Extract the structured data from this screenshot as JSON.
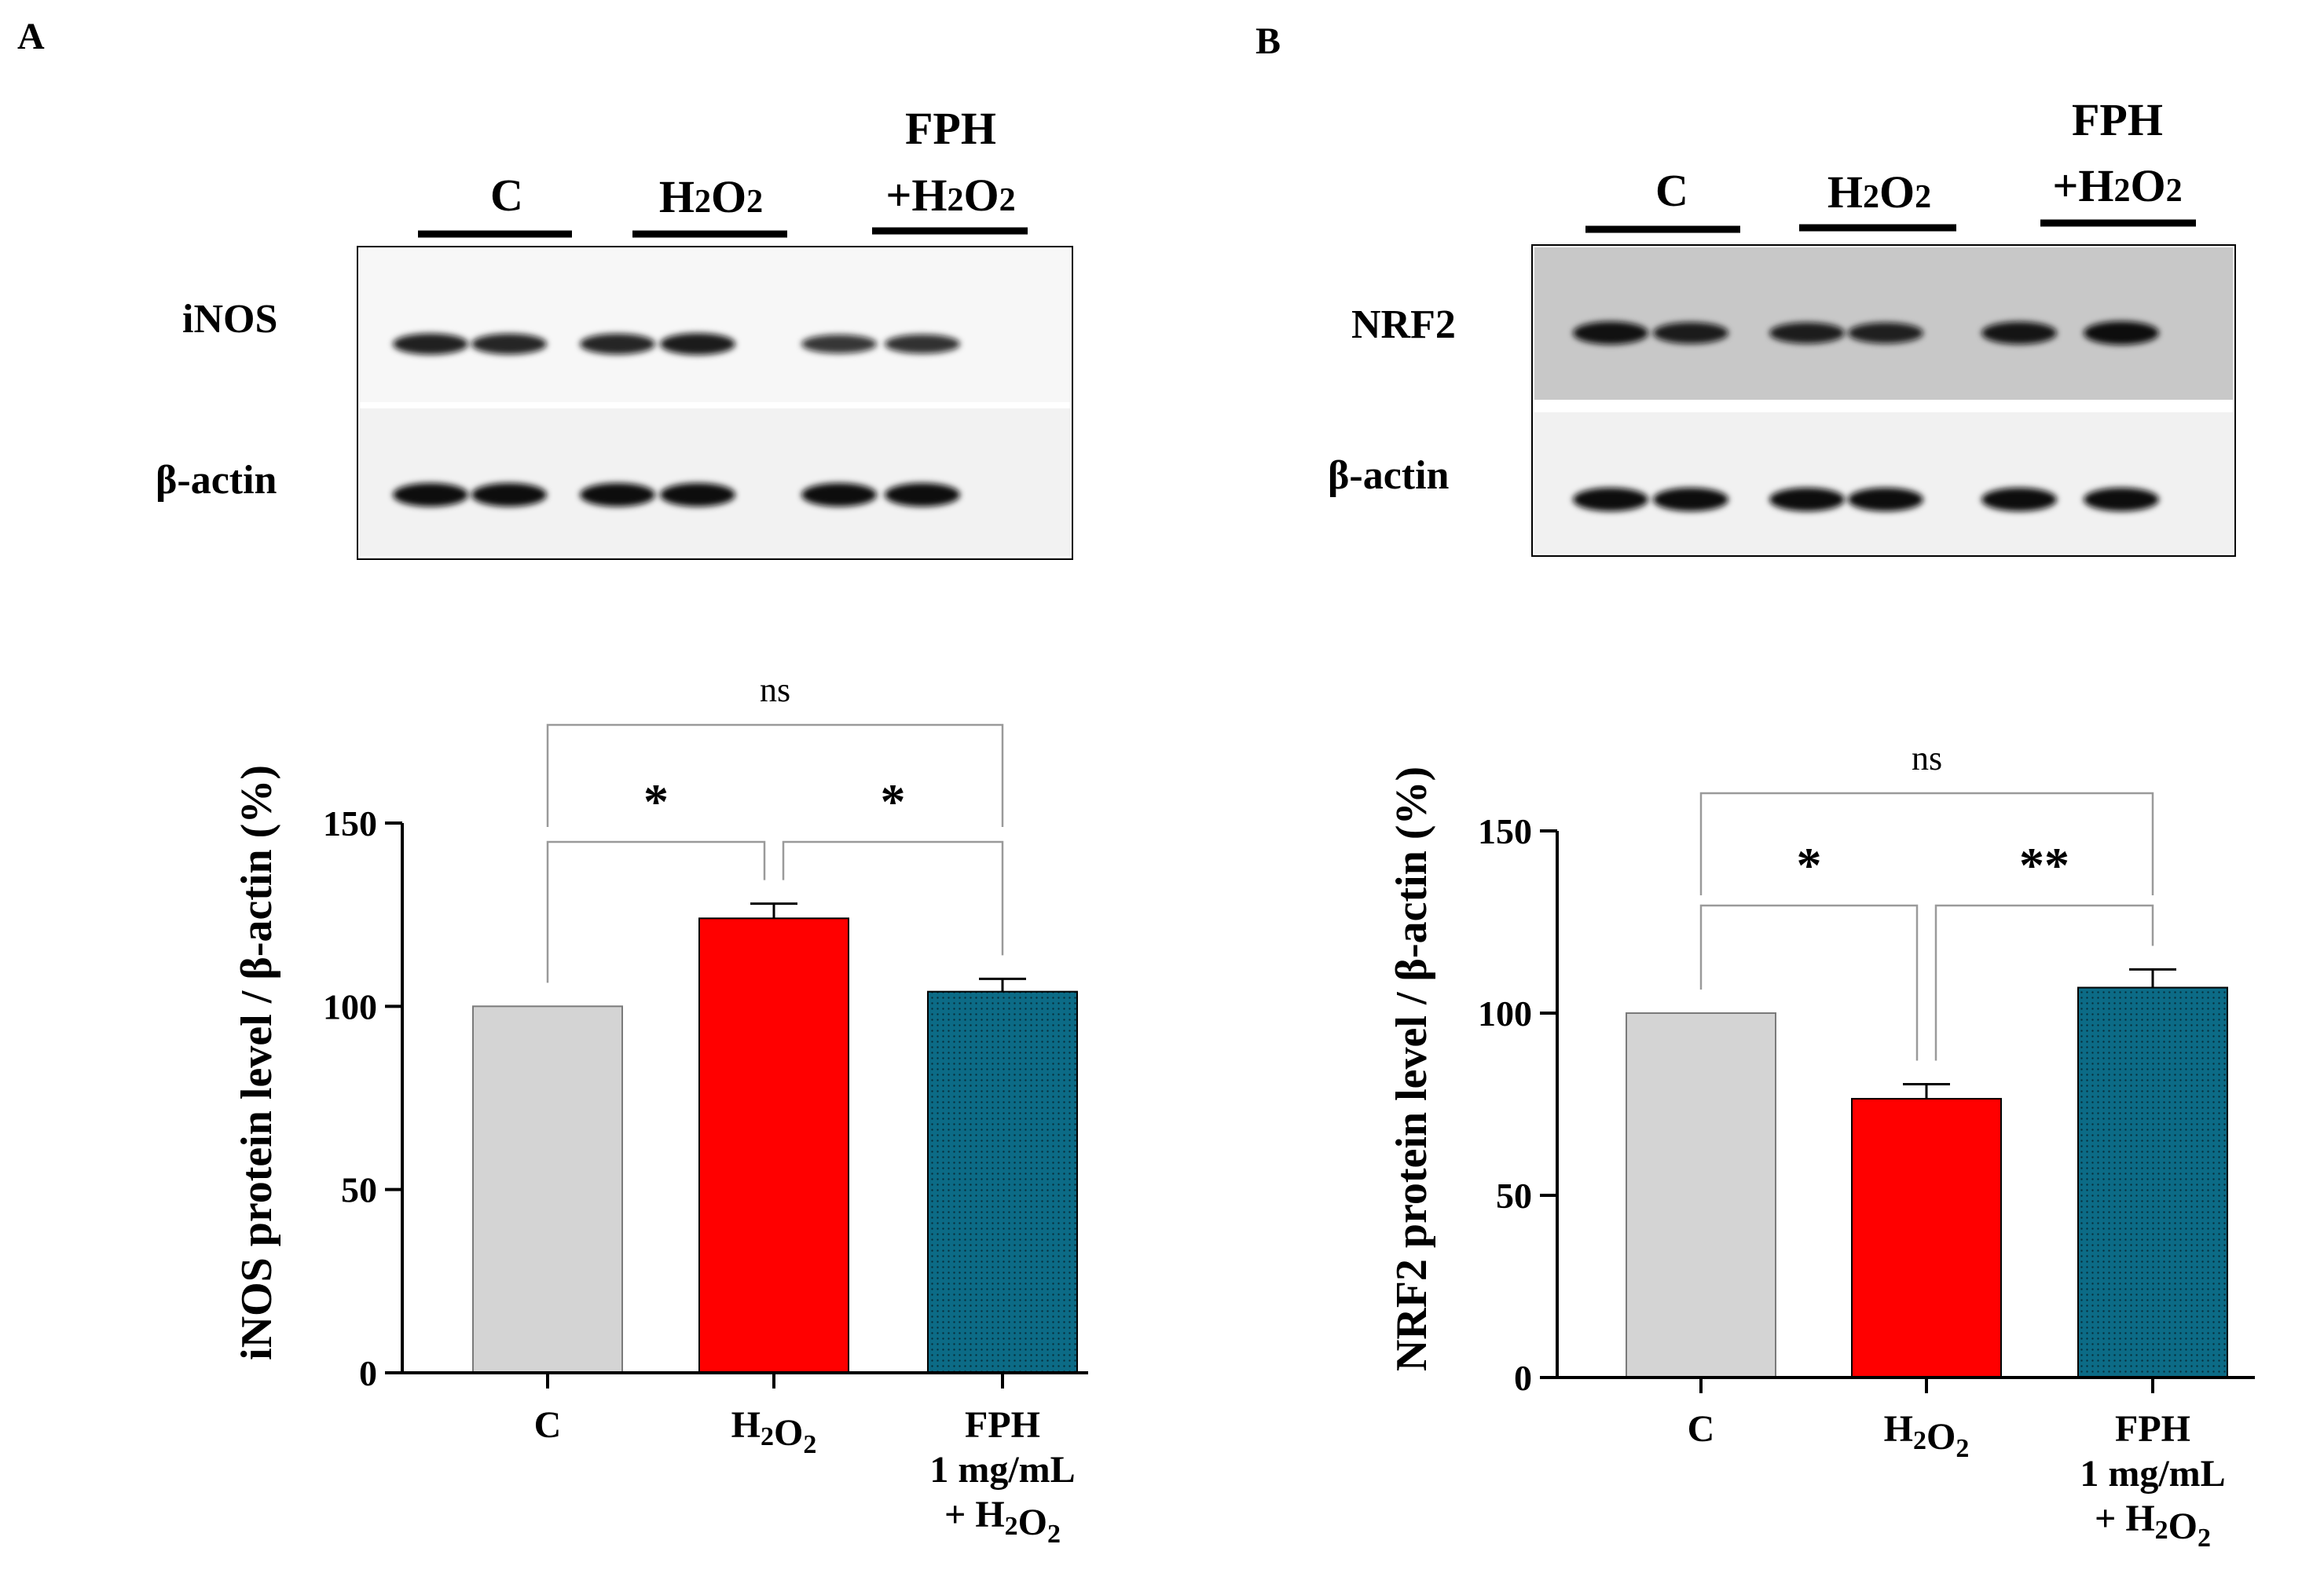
{
  "colors": {
    "control": "#d4d4d4",
    "h2o2": "#ff0000",
    "fph": "#0c6b86",
    "fph_dots": "#07303d",
    "bracket": "#9a9a9a",
    "band": "#0e0e0e"
  },
  "panels": {
    "a": {
      "letter": "A",
      "blot": {
        "lane_groups": [
          {
            "label": "C"
          },
          {
            "label": "H",
            "sub": "2",
            "mid": "O",
            "sub2": "2"
          },
          {
            "label_top": "FPH",
            "label": "+H",
            "sub": "2",
            "mid": "O",
            "sub2": "2"
          }
        ],
        "rows": [
          {
            "label": "iNOS",
            "intensity": [
              0.82,
              0.78,
              0.78,
              0.86,
              0.62,
              0.66
            ]
          },
          {
            "label": "β-actin",
            "intensity": [
              1.0,
              1.0,
              1.0,
              1.0,
              1.0,
              1.0
            ]
          }
        ]
      }
    },
    "b": {
      "letter": "B",
      "blot": {
        "lane_groups": [
          {
            "label": "C"
          },
          {
            "label": "H",
            "sub": "2",
            "mid": "O",
            "sub2": "2"
          },
          {
            "label_top": "FPH",
            "label": "+H",
            "sub": "2",
            "mid": "O",
            "sub2": "2"
          }
        ],
        "rows": [
          {
            "label": "NRF2",
            "intensity": [
              0.95,
              0.85,
              0.82,
              0.8,
              0.92,
              1.0
            ]
          },
          {
            "label": "β-actin",
            "intensity": [
              1.0,
              1.0,
              1.0,
              1.0,
              1.0,
              1.0
            ]
          }
        ]
      }
    }
  },
  "chart_data": [
    {
      "type": "bar",
      "panel": "A",
      "ylabel": "iNOS protein level / β-actin (%)",
      "ylim": [
        0,
        150
      ],
      "yticks": [
        0,
        50,
        100,
        150
      ],
      "categories": [
        {
          "lines": [
            {
              "text": "C"
            }
          ]
        },
        {
          "lines": [
            {
              "text": "H",
              "sub": "2",
              "text2": "O",
              "sub2": "2"
            }
          ]
        },
        {
          "lines": [
            {
              "text": "FPH"
            },
            {
              "text": "1 mg/mL"
            },
            {
              "text": "+ H",
              "sub": "2",
              "text2": "O",
              "sub2": "2"
            }
          ]
        }
      ],
      "values": [
        100,
        124,
        104
      ],
      "errors": [
        0,
        4,
        3.5
      ],
      "significance": [
        {
          "from": 0,
          "to": 1,
          "label": "*",
          "level": 1
        },
        {
          "from": 1,
          "to": 2,
          "label": "*",
          "level": 1
        },
        {
          "from": 0,
          "to": 2,
          "label": "ns",
          "level": 2
        }
      ]
    },
    {
      "type": "bar",
      "panel": "B",
      "ylabel": "NRF2 protein level / β-actin (%)",
      "ylim": [
        0,
        150
      ],
      "yticks": [
        0,
        50,
        100,
        150
      ],
      "categories": [
        {
          "lines": [
            {
              "text": "C"
            }
          ]
        },
        {
          "lines": [
            {
              "text": "H",
              "sub": "2",
              "text2": "O",
              "sub2": "2"
            }
          ]
        },
        {
          "lines": [
            {
              "text": "FPH"
            },
            {
              "text": "1 mg/mL"
            },
            {
              "text": "+ H",
              "sub": "2",
              "text2": "O",
              "sub2": "2"
            }
          ]
        }
      ],
      "values": [
        100,
        76.5,
        107
      ],
      "errors": [
        0,
        4,
        5
      ],
      "significance": [
        {
          "from": 0,
          "to": 1,
          "label": "*",
          "level": 1
        },
        {
          "from": 1,
          "to": 2,
          "label": "**",
          "level": 1
        },
        {
          "from": 0,
          "to": 2,
          "label": "ns",
          "level": 2
        }
      ]
    }
  ]
}
